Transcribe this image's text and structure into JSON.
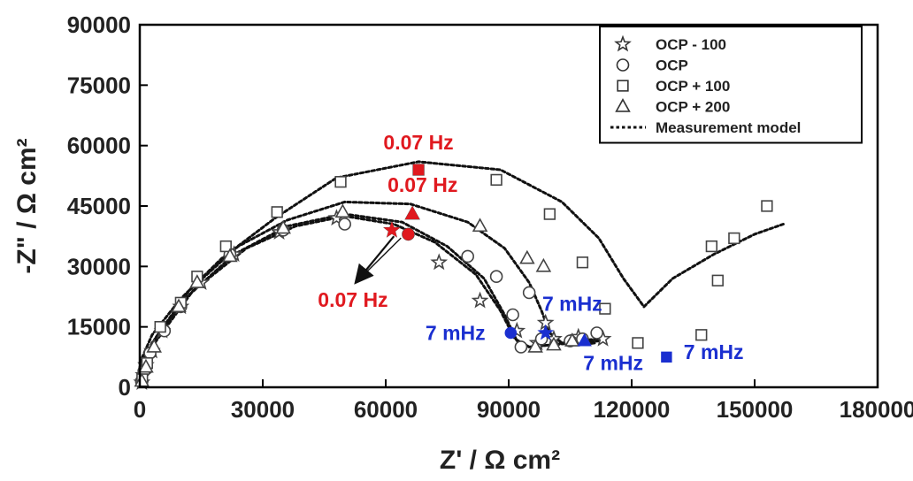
{
  "chart_data": {
    "type": "scatter",
    "xlabel": "Z' / Ω cm²",
    "ylabel": "-Z\" / Ω cm²",
    "xlim": [
      0,
      180000
    ],
    "ylim": [
      0,
      90000
    ],
    "xticks": [
      "0",
      "30000",
      "60000",
      "90000",
      "120000",
      "150000",
      "180000"
    ],
    "yticks": [
      "0",
      "15000",
      "30000",
      "45000",
      "60000",
      "75000",
      "90000"
    ],
    "grid": false,
    "legend_position": "top-right",
    "legend": [
      {
        "label": "OCP - 100",
        "marker": "star"
      },
      {
        "label": "OCP",
        "marker": "circle"
      },
      {
        "label": "OCP + 100",
        "marker": "square"
      },
      {
        "label": "OCP + 200",
        "marker": "triangle"
      },
      {
        "label": "Measurement model",
        "marker": "dotted-line"
      }
    ],
    "series": [
      {
        "name": "OCP - 100",
        "marker": "star",
        "points": [
          [
            500,
            1200
          ],
          [
            900,
            3000
          ],
          [
            1500,
            5500
          ],
          [
            3000,
            9000
          ],
          [
            5500,
            14000
          ],
          [
            10000,
            20000
          ],
          [
            15000,
            26000
          ],
          [
            23000,
            33000
          ],
          [
            34000,
            38500
          ],
          [
            48000,
            42000
          ],
          [
            61500,
            39000
          ],
          [
            73000,
            31000
          ],
          [
            83000,
            21500
          ],
          [
            92000,
            14000
          ],
          [
            97000,
            11000
          ],
          [
            101000,
            12000
          ],
          [
            107000,
            12500
          ],
          [
            113000,
            12000
          ],
          [
            99000,
            16000
          ]
        ],
        "highlight": [
          {
            "x": 61500,
            "y": 39000,
            "label": "0.07 Hz"
          },
          {
            "x": 99000,
            "y": 13500,
            "label": "7 mHz"
          }
        ]
      },
      {
        "name": "OCP",
        "marker": "circle",
        "points": [
          [
            400,
            1500
          ],
          [
            1000,
            4000
          ],
          [
            2500,
            8500
          ],
          [
            6000,
            14000
          ],
          [
            10000,
            20000
          ],
          [
            22000,
            33000
          ],
          [
            35000,
            39000
          ],
          [
            50000,
            40500
          ],
          [
            65500,
            38000
          ],
          [
            80000,
            32500
          ],
          [
            87000,
            27500
          ],
          [
            91000,
            18000
          ],
          [
            93000,
            10000
          ],
          [
            95000,
            23500
          ],
          [
            98000,
            12000
          ],
          [
            105000,
            11500
          ],
          [
            108000,
            12000
          ],
          [
            111500,
            13500
          ]
        ],
        "highlight": [
          {
            "x": 65500,
            "y": 38000,
            "label": "0.07 Hz"
          },
          {
            "x": 90500,
            "y": 13500,
            "label": "7 mHz"
          }
        ]
      },
      {
        "name": "OCP + 100",
        "marker": "square",
        "points": [
          [
            600,
            2000
          ],
          [
            1800,
            6000
          ],
          [
            5000,
            15000
          ],
          [
            10000,
            21000
          ],
          [
            14000,
            27500
          ],
          [
            21000,
            35000
          ],
          [
            33500,
            43500
          ],
          [
            49000,
            51000
          ],
          [
            68000,
            54000
          ],
          [
            87000,
            51500
          ],
          [
            100000,
            43000
          ],
          [
            108000,
            31000
          ],
          [
            121500,
            11000
          ],
          [
            137000,
            13000
          ],
          [
            139500,
            35000
          ],
          [
            141000,
            26500
          ],
          [
            145000,
            37000
          ],
          [
            153000,
            45000
          ],
          [
            113500,
            19500
          ]
        ],
        "highlight": [
          {
            "x": 68000,
            "y": 54000,
            "label": "0.07 Hz"
          },
          {
            "x": 128500,
            "y": 7500,
            "label": "7 mHz"
          }
        ]
      },
      {
        "name": "OCP + 200",
        "marker": "triangle",
        "points": [
          [
            500,
            1500
          ],
          [
            1500,
            5000
          ],
          [
            3500,
            10000
          ],
          [
            9500,
            20000
          ],
          [
            14000,
            26000
          ],
          [
            22000,
            32500
          ],
          [
            35000,
            39500
          ],
          [
            49500,
            43500
          ],
          [
            66500,
            43000
          ],
          [
            83000,
            40000
          ],
          [
            94500,
            32000
          ],
          [
            98500,
            30000
          ],
          [
            96500,
            10000
          ],
          [
            101000,
            10500
          ],
          [
            105500,
            11500
          ]
        ],
        "highlight": [
          {
            "x": 66500,
            "y": 43000,
            "label": "0.07 Hz"
          },
          {
            "x": 108500,
            "y": 11500,
            "label": "7 mHz"
          }
        ]
      },
      {
        "name": "Measurement model",
        "marker": "dotted-line",
        "curves": [
          {
            "for": "OCP + 100",
            "points": [
              [
                0,
                6000
              ],
              [
                3000,
                13000
              ],
              [
                10000,
                22000
              ],
              [
                20000,
                32000
              ],
              [
                33000,
                42000
              ],
              [
                48000,
                52000
              ],
              [
                68000,
                56000
              ],
              [
                88000,
                54000
              ],
              [
                103000,
                46000
              ],
              [
                112000,
                37000
              ],
              [
                118000,
                27000
              ],
              [
                123000,
                20000
              ],
              [
                130000,
                27000
              ],
              [
                140000,
                33000
              ],
              [
                150000,
                38000
              ],
              [
                157000,
                40500
              ]
            ]
          },
          {
            "for": "OCP + 200",
            "points": [
              [
                0,
                5000
              ],
              [
                4000,
                12500
              ],
              [
                12000,
                24000
              ],
              [
                24000,
                35000
              ],
              [
                36000,
                41500
              ],
              [
                50000,
                46000
              ],
              [
                66000,
                45500
              ],
              [
                80000,
                41000
              ],
              [
                89000,
                34500
              ],
              [
                95000,
                26000
              ],
              [
                98000,
                19000
              ],
              [
                100000,
                13500
              ],
              [
                103000,
                11000
              ],
              [
                107000,
                10500
              ],
              [
                111000,
                11000
              ]
            ]
          },
          {
            "for": "OCP",
            "points": [
              [
                0,
                4000
              ],
              [
                3000,
                11000
              ],
              [
                11000,
                22000
              ],
              [
                23000,
                33000
              ],
              [
                36000,
                40000
              ],
              [
                50000,
                43000
              ],
              [
                64000,
                41000
              ],
              [
                75000,
                35000
              ],
              [
                84000,
                27000
              ],
              [
                89000,
                18000
              ],
              [
                92000,
                11500
              ],
              [
                95000,
                10000
              ],
              [
                100000,
                10500
              ],
              [
                106000,
                11000
              ],
              [
                112000,
                11500
              ]
            ]
          },
          {
            "for": "OCP - 100",
            "points": [
              [
                0,
                3500
              ],
              [
                4000,
                11500
              ],
              [
                13000,
                24000
              ],
              [
                26000,
                34500
              ],
              [
                38000,
                40000
              ],
              [
                50000,
                42500
              ],
              [
                62000,
                40500
              ],
              [
                72000,
                36000
              ],
              [
                82000,
                28000
              ],
              [
                88000,
                19000
              ],
              [
                91500,
                12000
              ],
              [
                95000,
                10000
              ],
              [
                100000,
                10500
              ],
              [
                106000,
                11500
              ],
              [
                112000,
                12000
              ]
            ]
          }
        ]
      }
    ],
    "annotations": [
      {
        "text": "0.07 Hz",
        "color": "#e0191f",
        "x": 68000,
        "y": 59000
      },
      {
        "text": "0.07 Hz",
        "color": "#e0191f",
        "x": 69000,
        "y": 48500
      },
      {
        "text": "0.07 Hz",
        "color": "#e0191f",
        "x": 52000,
        "y": 20000,
        "arrow_from": [
          62000,
          37500
        ],
        "arrow_to": [
          53500,
          27000
        ]
      },
      {
        "text": "7 mHz",
        "color": "#1a2fd0",
        "x": 105500,
        "y": 19000
      },
      {
        "text": "7 mHz",
        "color": "#1a2fd0",
        "x": 77000,
        "y": 11700
      },
      {
        "text": "7 mHz",
        "color": "#1a2fd0",
        "x": 115500,
        "y": 4300
      },
      {
        "text": "7 mHz",
        "color": "#1a2fd0",
        "x": 140000,
        "y": 7000
      }
    ],
    "colors": {
      "axis": "#000000",
      "marker": "#444444",
      "highlight_red": "#e0191f",
      "highlight_blue": "#1a2fd0",
      "text": "#222222"
    }
  }
}
